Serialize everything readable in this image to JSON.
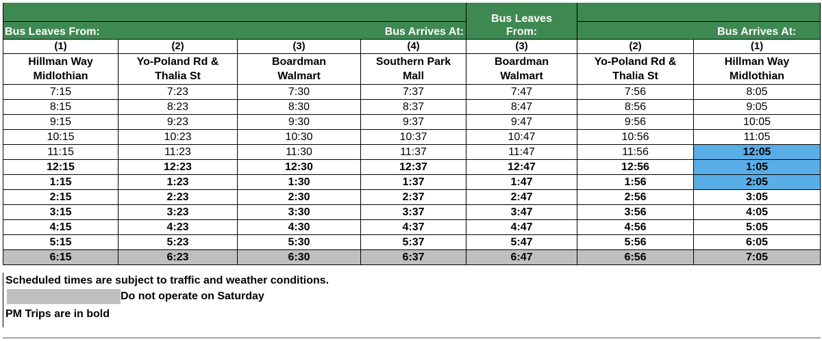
{
  "header": {
    "leaves_from_1": "Bus Leaves From:",
    "arrives_at_1": "Bus Arrives At:",
    "leaves_from_2a": "Bus Leaves",
    "leaves_from_2b": "From:",
    "arrives_at_2": "Bus Arrives At:"
  },
  "columns": [
    {
      "num": "(1)",
      "line1": "Hillman Way",
      "line2": "Midlothian"
    },
    {
      "num": "(2)",
      "line1": "Yo-Poland Rd &",
      "line2": "Thalia St"
    },
    {
      "num": "(3)",
      "line1": "Boardman",
      "line2": "Walmart"
    },
    {
      "num": "(4)",
      "line1": "Southern Park",
      "line2": "Mall"
    },
    {
      "num": "(3)",
      "line1": "Boardman",
      "line2": "Walmart"
    },
    {
      "num": "(2)",
      "line1": "Yo-Poland Rd &",
      "line2": "Thalia St"
    },
    {
      "num": "(1)",
      "line1": "Hillman Way",
      "line2": "Midlothian"
    }
  ],
  "rows": [
    [
      "7:15",
      "7:23",
      "7:30",
      "7:37",
      "7:47",
      "7:56",
      "8:05"
    ],
    [
      "8:15",
      "8:23",
      "8:30",
      "8:37",
      "8:47",
      "8:56",
      "9:05"
    ],
    [
      "9:15",
      "9:23",
      "9:30",
      "9:37",
      "9:47",
      "9:56",
      "10:05"
    ],
    [
      "10:15",
      "10:23",
      "10:30",
      "10:37",
      "10:47",
      "10:56",
      "11:05"
    ],
    [
      "11:15",
      "11:23",
      "11:30",
      "11:37",
      "11:47",
      "11:56",
      "12:05"
    ],
    [
      "12:15",
      "12:23",
      "12:30",
      "12:37",
      "12:47",
      "12:56",
      "1:05"
    ],
    [
      "1:15",
      "1:23",
      "1:30",
      "1:37",
      "1:47",
      "1:56",
      "2:05"
    ],
    [
      "2:15",
      "2:23",
      "2:30",
      "2:37",
      "2:47",
      "2:56",
      "3:05"
    ],
    [
      "3:15",
      "3:23",
      "3:30",
      "3:37",
      "3:47",
      "3:56",
      "4:05"
    ],
    [
      "4:15",
      "4:23",
      "4:30",
      "4:37",
      "4:47",
      "4:56",
      "5:05"
    ],
    [
      "5:15",
      "5:23",
      "5:30",
      "5:37",
      "5:47",
      "5:56",
      "6:05"
    ],
    [
      "6:15",
      "6:23",
      "6:30",
      "6:37",
      "6:47",
      "6:56",
      "7:05"
    ]
  ],
  "notes": {
    "traffic": "Scheduled times are subject to traffic and weather conditions.",
    "saturday": "Do not operate on Saturday",
    "pm_bold": "PM Trips are in bold"
  },
  "colors": {
    "header_green": "#3e8951",
    "highlight_blue": "#5aaee8",
    "saturday_gray": "#bfbfbf"
  }
}
